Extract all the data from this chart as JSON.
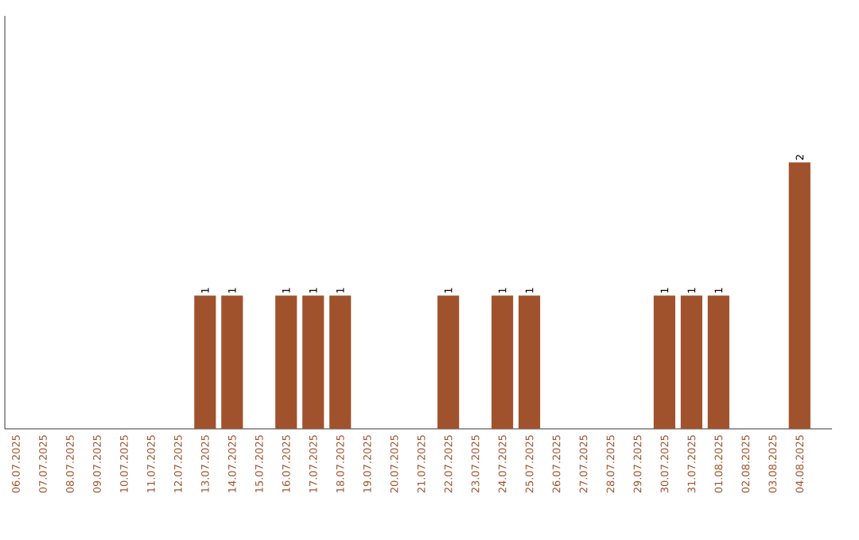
{
  "chart_data": {
    "type": "bar",
    "categories": [
      "06.07.2025",
      "07.07.2025",
      "08.07.2025",
      "09.07.2025",
      "10.07.2025",
      "11.07.2025",
      "12.07.2025",
      "13.07.2025",
      "14.07.2025",
      "15.07.2025",
      "16.07.2025",
      "17.07.2025",
      "18.07.2025",
      "19.07.2025",
      "20.07.2025",
      "21.07.2025",
      "22.07.2025",
      "23.07.2025",
      "24.07.2025",
      "25.07.2025",
      "26.07.2025",
      "27.07.2025",
      "28.07.2025",
      "29.07.2025",
      "30.07.2025",
      "31.07.2025",
      "01.08.2025",
      "02.08.2025",
      "03.08.2025",
      "04.08.2025"
    ],
    "values": [
      0,
      0,
      0,
      0,
      0,
      0,
      0,
      1,
      1,
      0,
      1,
      1,
      1,
      0,
      0,
      0,
      1,
      0,
      1,
      1,
      0,
      0,
      0,
      0,
      1,
      1,
      1,
      0,
      0,
      2
    ],
    "value_labels": [
      null,
      null,
      null,
      null,
      null,
      null,
      null,
      "1",
      "1",
      null,
      "1",
      "1",
      "1",
      null,
      null,
      null,
      "1",
      null,
      "1",
      "1",
      null,
      null,
      null,
      null,
      "1",
      "1",
      "1",
      null,
      null,
      "2"
    ],
    "color": "#a0522d",
    "tick_labels": "x"
  }
}
